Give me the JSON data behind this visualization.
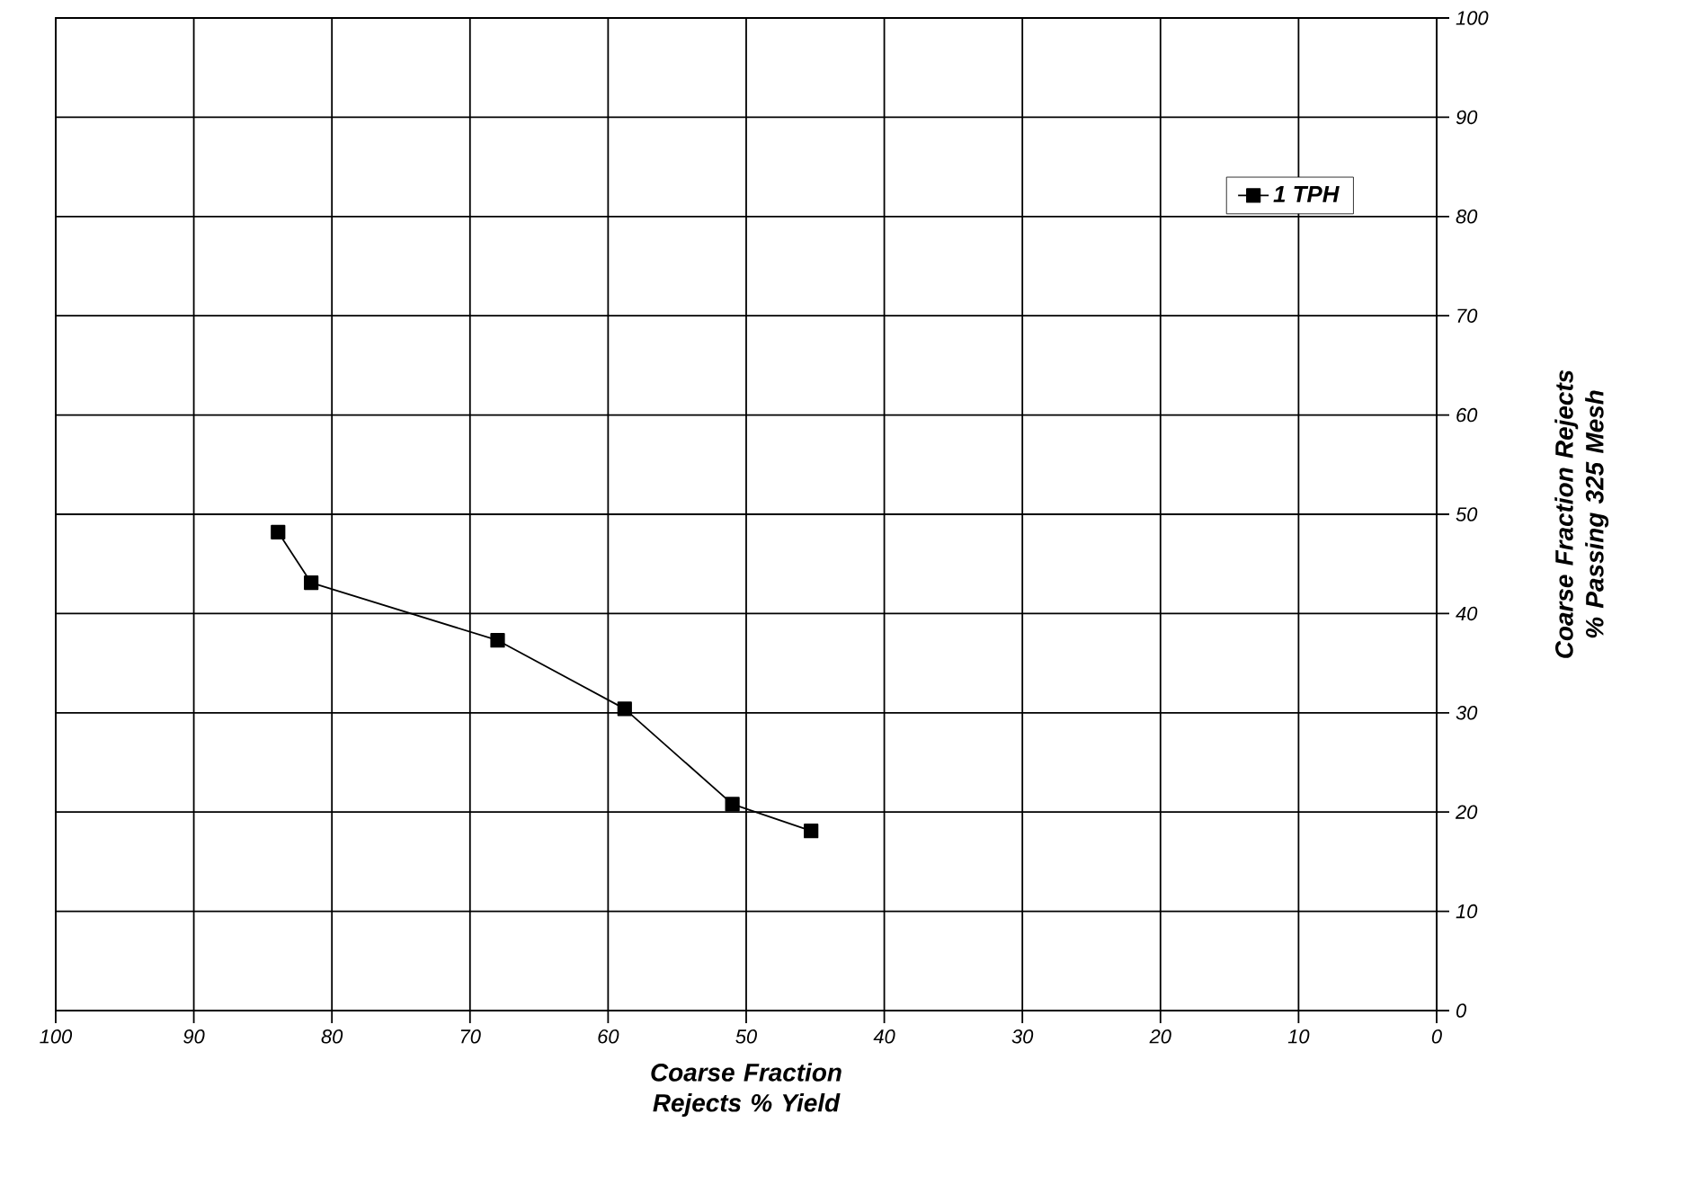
{
  "chart_data": {
    "type": "line",
    "xlabel": "Coarse Fraction Rejects % Yield",
    "ylabel": "Coarse Fraction Rejects % Passing 325 Mesh",
    "x": [
      83.9,
      81.5,
      68.0,
      58.8,
      51.0,
      45.3
    ],
    "series": [
      {
        "name": "1 TPH",
        "color": "#000000",
        "values": [
          48.2,
          43.1,
          37.3,
          30.4,
          20.8,
          18.1
        ]
      }
    ],
    "xlim": [
      100,
      0
    ],
    "ylim": [
      0,
      100
    ],
    "xticks": [
      100,
      90,
      80,
      70,
      60,
      50,
      40,
      30,
      20,
      10,
      0
    ],
    "yticks": [
      0,
      10,
      20,
      30,
      40,
      50,
      60,
      70,
      80,
      90,
      100
    ],
    "grid": true,
    "legend": "top right",
    "marker": "square",
    "line_style": "solid"
  }
}
